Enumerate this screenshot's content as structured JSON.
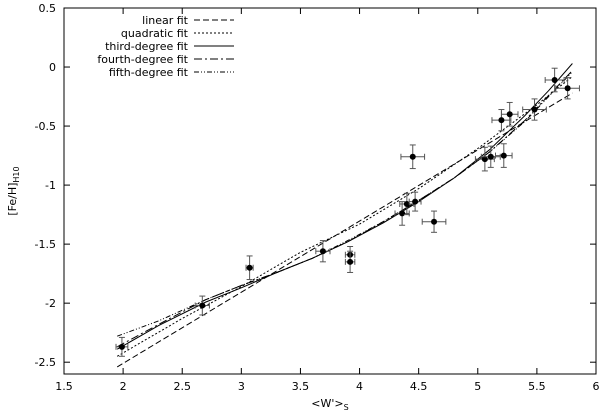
{
  "chart_data": {
    "type": "scatter",
    "xlabel": "<W'>",
    "xlabel_sub": "S",
    "ylabel": "[Fe/H]",
    "ylabel_sub": "H10",
    "xlim": [
      1.5,
      6
    ],
    "ylim": [
      -2.6,
      0.5
    ],
    "xticks": [
      1.5,
      2,
      2.5,
      3,
      3.5,
      4,
      4.5,
      5,
      5.5,
      6
    ],
    "yticks": [
      -2.5,
      -2,
      -1.5,
      -1,
      -0.5,
      0,
      0.5
    ],
    "xtick_labels": [
      "1.5",
      "2",
      "2.5",
      "3",
      "3.5",
      "4",
      "4.5",
      "5",
      "5.5",
      "6"
    ],
    "ytick_labels": [
      "-2.5",
      "-2",
      "-1.5",
      "-1",
      "-0.5",
      "0",
      "0.5"
    ],
    "grid": false,
    "legend_position": "top-left",
    "points": [
      {
        "x": 1.99,
        "y": -2.37,
        "xerr": 0.05,
        "yerr": 0.08
      },
      {
        "x": 2.67,
        "y": -2.02,
        "xerr": 0.06,
        "yerr": 0.08
      },
      {
        "x": 3.07,
        "y": -1.7,
        "xerr": 0.03,
        "yerr": 0.1
      },
      {
        "x": 3.69,
        "y": -1.56,
        "xerr": 0.06,
        "yerr": 0.09
      },
      {
        "x": 3.92,
        "y": -1.59,
        "xerr": 0.04,
        "yerr": 0.07
      },
      {
        "x": 3.92,
        "y": -1.65,
        "xerr": 0.04,
        "yerr": 0.09
      },
      {
        "x": 4.36,
        "y": -1.24,
        "xerr": 0.06,
        "yerr": 0.1
      },
      {
        "x": 4.4,
        "y": -1.16,
        "xerr": 0.06,
        "yerr": 0.09
      },
      {
        "x": 4.47,
        "y": -1.14,
        "xerr": 0.05,
        "yerr": 0.08
      },
      {
        "x": 4.45,
        "y": -0.76,
        "xerr": 0.1,
        "yerr": 0.1
      },
      {
        "x": 4.63,
        "y": -1.31,
        "xerr": 0.1,
        "yerr": 0.09
      },
      {
        "x": 5.06,
        "y": -0.78,
        "xerr": 0.08,
        "yerr": 0.1
      },
      {
        "x": 5.11,
        "y": -0.76,
        "xerr": 0.08,
        "yerr": 0.09
      },
      {
        "x": 5.22,
        "y": -0.75,
        "xerr": 0.07,
        "yerr": 0.1
      },
      {
        "x": 5.2,
        "y": -0.45,
        "xerr": 0.08,
        "yerr": 0.09
      },
      {
        "x": 5.27,
        "y": -0.4,
        "xerr": 0.07,
        "yerr": 0.1
      },
      {
        "x": 5.48,
        "y": -0.36,
        "xerr": 0.1,
        "yerr": 0.09
      },
      {
        "x": 5.65,
        "y": -0.11,
        "xerr": 0.08,
        "yerr": 0.1
      },
      {
        "x": 5.76,
        "y": -0.18,
        "xerr": 0.1,
        "yerr": 0.09
      }
    ],
    "series": [
      {
        "name": "linear fit",
        "dash": "6,3",
        "x": [
          1.95,
          5.8
        ],
        "y": [
          -2.54,
          -0.22
        ]
      },
      {
        "name": "quadratic fit",
        "dash": "2,2",
        "x": [
          1.95,
          2.5,
          3.0,
          3.5,
          4.0,
          4.5,
          5.0,
          5.5,
          5.8
        ],
        "y": [
          -2.45,
          -2.13,
          -1.86,
          -1.57,
          -1.33,
          -1.03,
          -0.69,
          -0.32,
          -0.08
        ]
      },
      {
        "name": "third-degree fit",
        "dash": "",
        "x": [
          1.95,
          2.3,
          2.7,
          3.0,
          3.3,
          3.6,
          3.9,
          4.2,
          4.5,
          4.8,
          5.1,
          5.4,
          5.6,
          5.8
        ],
        "y": [
          -2.39,
          -2.19,
          -1.99,
          -1.87,
          -1.74,
          -1.62,
          -1.48,
          -1.32,
          -1.14,
          -0.94,
          -0.7,
          -0.41,
          -0.2,
          0.03
        ]
      },
      {
        "name": "fourth-degree fit",
        "dash": "8,3,2,3",
        "x": [
          1.95,
          2.3,
          2.7,
          3.0,
          3.3,
          3.6,
          3.9,
          4.2,
          4.5,
          4.8,
          5.1,
          5.4,
          5.6,
          5.8
        ],
        "y": [
          -2.37,
          -2.18,
          -1.97,
          -1.85,
          -1.74,
          -1.62,
          -1.48,
          -1.31,
          -1.13,
          -0.94,
          -0.72,
          -0.45,
          -0.24,
          -0.03
        ]
      },
      {
        "name": "fifth-degree fit",
        "dash": "5,2,1,2,1,2",
        "x": [
          1.95,
          2.3,
          2.7,
          3.0,
          3.3,
          3.6,
          3.9,
          4.2,
          4.5,
          4.8,
          5.1,
          5.4,
          5.6,
          5.8
        ],
        "y": [
          -2.28,
          -2.15,
          -1.97,
          -1.85,
          -1.74,
          -1.62,
          -1.47,
          -1.31,
          -1.13,
          -0.94,
          -0.72,
          -0.46,
          -0.25,
          -0.04
        ]
      }
    ]
  }
}
